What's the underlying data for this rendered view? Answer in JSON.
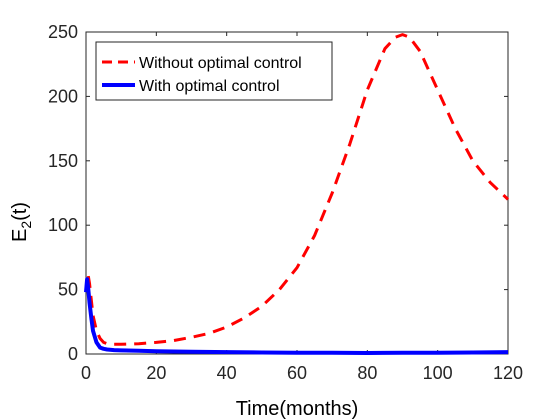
{
  "chart_data": {
    "type": "line",
    "title": "",
    "xlabel": "Time(months)",
    "ylabel": {
      "base": "E",
      "sub": "2",
      "suffix": "(t)"
    },
    "xlim": [
      0,
      120
    ],
    "ylim": [
      0,
      250
    ],
    "xticks": [
      0,
      20,
      40,
      60,
      80,
      100,
      120
    ],
    "yticks": [
      0,
      50,
      100,
      150,
      200,
      250
    ],
    "grid": false,
    "legend_position": "top-left",
    "series": [
      {
        "name": "Without optimal control",
        "color": "#ff0000",
        "style": "dashed",
        "x": [
          0,
          0.5,
          1,
          1.5,
          2,
          3,
          4,
          5,
          6,
          8,
          10,
          15,
          20,
          25,
          30,
          35,
          40,
          45,
          50,
          55,
          60,
          65,
          70,
          75,
          80,
          85,
          88,
          90,
          92,
          95,
          100,
          105,
          110,
          115,
          120
        ],
        "y": [
          50,
          63,
          55,
          42,
          30,
          18,
          12,
          9,
          8,
          7.5,
          7.5,
          8,
          9,
          10.5,
          13,
          16,
          21,
          28,
          37,
          50,
          67,
          92,
          125,
          163,
          205,
          237,
          246,
          248,
          246,
          235,
          205,
          175,
          150,
          133,
          120
        ]
      },
      {
        "name": "With optimal control",
        "color": "#0000ff",
        "style": "solid",
        "x": [
          0,
          0.3,
          0.6,
          1,
          1.5,
          2,
          3,
          4,
          5,
          6,
          8,
          10,
          15,
          20,
          30,
          40,
          50,
          60,
          70,
          80,
          90,
          100,
          110,
          120
        ],
        "y": [
          48,
          58,
          52,
          40,
          28,
          18,
          9,
          5,
          4,
          3.5,
          3,
          2.8,
          2.5,
          2.2,
          1.8,
          1.5,
          1.2,
          1,
          0.9,
          0.8,
          0.9,
          1,
          1.2,
          1.5
        ]
      }
    ]
  }
}
